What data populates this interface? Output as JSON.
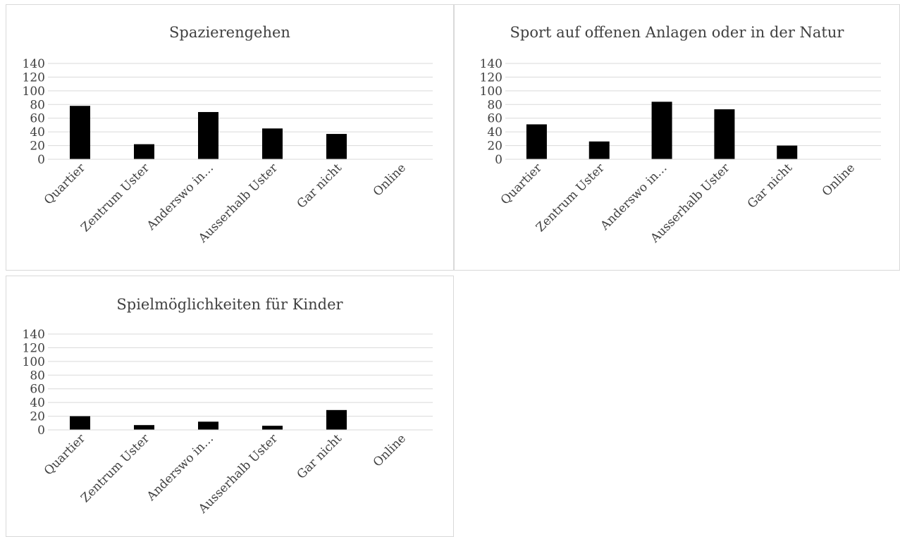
{
  "chart_data": [
    {
      "type": "bar",
      "title": "Spazierengehen",
      "categories": [
        "Quartier",
        "Zentrum Uster",
        "Anderswo in…",
        "Ausserhalb Uster",
        "Gar nicht",
        "Online"
      ],
      "values": [
        78,
        22,
        69,
        45,
        37,
        0
      ],
      "ylim": [
        0,
        140
      ],
      "yticks": [
        "0",
        "20",
        "40",
        "60",
        "80",
        "100",
        "120",
        "140"
      ],
      "grid": true,
      "bar_color": "#000000",
      "grid_color": "#d9d9d9"
    },
    {
      "type": "bar",
      "title": "Sport auf offenen Anlagen oder in der Natur",
      "categories": [
        "Quartier",
        "Zentrum Uster",
        "Anderswo in…",
        "Ausserhalb Uster",
        "Gar nicht",
        "Online"
      ],
      "values": [
        51,
        26,
        84,
        73,
        20,
        0
      ],
      "ylim": [
        0,
        140
      ],
      "yticks": [
        "0",
        "20",
        "40",
        "60",
        "80",
        "100",
        "120",
        "140"
      ],
      "grid": true,
      "bar_color": "#000000",
      "grid_color": "#d9d9d9"
    },
    {
      "type": "bar",
      "title": "Spielmöglichkeiten für Kinder",
      "categories": [
        "Quartier",
        "Zentrum Uster",
        "Anderswo in…",
        "Ausserhalb Uster",
        "Gar nicht",
        "Online"
      ],
      "values": [
        20,
        7,
        12,
        6,
        29,
        0
      ],
      "ylim": [
        0,
        140
      ],
      "yticks": [
        "0",
        "20",
        "40",
        "60",
        "80",
        "100",
        "120",
        "140"
      ],
      "grid": true,
      "bar_color": "#000000",
      "grid_color": "#d9d9d9"
    }
  ]
}
